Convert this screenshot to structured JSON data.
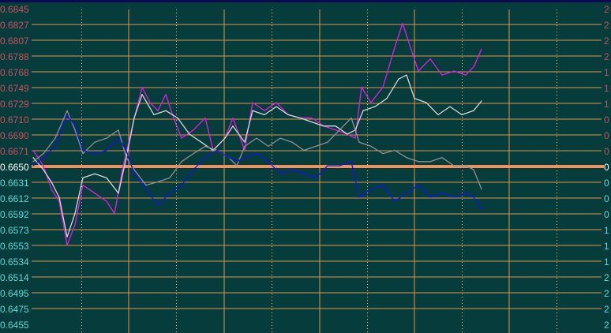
{
  "chart_data": {
    "type": "line",
    "ylim": [
      0.6455,
      0.6845
    ],
    "reference_value": 0.665,
    "grid": true,
    "left_axis_ticks": [
      "0.6845",
      "0.6827",
      "0.6807",
      "0.6788",
      "0.6768",
      "0.6749",
      "0.6729",
      "0.6710",
      "0.6690",
      "0.6671",
      "0.6650",
      "0.6631",
      "0.6612",
      "0.6592",
      "0.6573",
      "0.6553",
      "0.6534",
      "0.6514",
      "0.6495",
      "0.6475",
      "0.6455"
    ],
    "right_axis_ticks": [
      "2",
      "2",
      "2",
      "2",
      "1",
      "1",
      "1",
      "0",
      "0",
      "0",
      "0",
      "0",
      "0",
      "0",
      "1",
      "1",
      "1",
      "2",
      "2",
      "2",
      "2"
    ],
    "colors": {
      "background": "#063c3c",
      "grid": "#d9964e",
      "reference_line": "#f0905a",
      "upper_labels": "#c8505a",
      "reference_label": "#ffffff",
      "lower_labels": "#5ed8d8"
    },
    "series": [
      {
        "color": "#e020e0",
        "x": [
          0,
          13,
          23,
          33,
          43,
          53,
          63,
          78,
          93,
          103,
          113,
          128,
          138,
          148,
          158,
          168,
          178,
          188,
          203,
          218,
          228,
          243,
          253,
          268,
          278,
          293,
          308,
          323,
          338,
          353,
          368,
          383,
          398,
          408,
          416,
          428,
          443,
          458,
          468,
          478,
          488,
          503,
          518,
          533,
          548,
          558,
          568
        ],
        "y": [
          0.667,
          0.6651,
          0.6622,
          0.6607,
          0.6553,
          0.6578,
          0.6627,
          0.6617,
          0.6607,
          0.6592,
          0.6646,
          0.671,
          0.6748,
          0.6729,
          0.6719,
          0.6739,
          0.671,
          0.6685,
          0.6695,
          0.671,
          0.667,
          0.6685,
          0.671,
          0.667,
          0.6729,
          0.6719,
          0.6729,
          0.6714,
          0.671,
          0.671,
          0.67,
          0.6695,
          0.669,
          0.6685,
          0.6748,
          0.6729,
          0.6748,
          0.6797,
          0.6827,
          0.6797,
          0.6768,
          0.6783,
          0.6763,
          0.6768,
          0.6763,
          0.6773,
          0.6795
        ]
      },
      {
        "color": "#d8d8d8",
        "x": [
          0,
          13,
          23,
          33,
          43,
          53,
          63,
          78,
          93,
          108,
          118,
          128,
          138,
          153,
          168,
          183,
          198,
          213,
          228,
          243,
          253,
          268,
          278,
          293,
          308,
          323,
          338,
          353,
          368,
          383,
          398,
          408,
          418,
          433,
          448,
          463,
          473,
          483,
          498,
          513,
          528,
          543,
          558,
          568
        ],
        "y": [
          0.6661,
          0.6646,
          0.6631,
          0.6612,
          0.6563,
          0.6592,
          0.6636,
          0.6641,
          0.6636,
          0.6617,
          0.6661,
          0.671,
          0.6739,
          0.6714,
          0.6719,
          0.671,
          0.669,
          0.668,
          0.667,
          0.6685,
          0.67,
          0.668,
          0.6719,
          0.6714,
          0.6724,
          0.6714,
          0.671,
          0.6705,
          0.67,
          0.67,
          0.669,
          0.6695,
          0.6719,
          0.6724,
          0.6734,
          0.6758,
          0.6763,
          0.6734,
          0.6729,
          0.6714,
          0.6724,
          0.6714,
          0.6719,
          0.6731
        ]
      },
      {
        "color": "#909090",
        "x": [
          0,
          13,
          28,
          43,
          53,
          63,
          78,
          93,
          108,
          118,
          128,
          143,
          158,
          173,
          188,
          203,
          218,
          233,
          248,
          258,
          268,
          283,
          298,
          313,
          328,
          343,
          358,
          373,
          388,
          403,
          413,
          428,
          443,
          458,
          473,
          488,
          503,
          518,
          533,
          548,
          558,
          568
        ],
        "y": [
          0.6656,
          0.6666,
          0.6685,
          0.6719,
          0.6695,
          0.6666,
          0.668,
          0.6685,
          0.6695,
          0.6661,
          0.6646,
          0.6627,
          0.6631,
          0.6636,
          0.6656,
          0.6666,
          0.6675,
          0.667,
          0.6661,
          0.6651,
          0.6675,
          0.6685,
          0.6675,
          0.6685,
          0.668,
          0.667,
          0.6675,
          0.668,
          0.6695,
          0.671,
          0.668,
          0.6675,
          0.6666,
          0.667,
          0.6661,
          0.6656,
          0.6656,
          0.6661,
          0.6651,
          0.6651,
          0.6646,
          0.6622
        ]
      },
      {
        "color": "#1414e0",
        "x": [
          0,
          13,
          28,
          43,
          53,
          63,
          78,
          93,
          108,
          118,
          128,
          143,
          158,
          173,
          188,
          203,
          218,
          233,
          248,
          258,
          268,
          283,
          298,
          313,
          328,
          343,
          358,
          373,
          388,
          403,
          413,
          428,
          443,
          458,
          473,
          488,
          503,
          518,
          533,
          548,
          558,
          568
        ],
        "y": [
          0.6651,
          0.6661,
          0.6675,
          0.6714,
          0.67,
          0.667,
          0.6666,
          0.667,
          0.6685,
          0.667,
          0.6641,
          0.6622,
          0.6602,
          0.6617,
          0.6627,
          0.6646,
          0.6661,
          0.667,
          0.6661,
          0.6656,
          0.6661,
          0.6666,
          0.6656,
          0.6641,
          0.6646,
          0.6641,
          0.6636,
          0.6651,
          0.6651,
          0.6656,
          0.6612,
          0.6622,
          0.6627,
          0.6607,
          0.6617,
          0.6627,
          0.6612,
          0.6617,
          0.6612,
          0.6617,
          0.6612,
          0.6597
        ]
      }
    ]
  }
}
